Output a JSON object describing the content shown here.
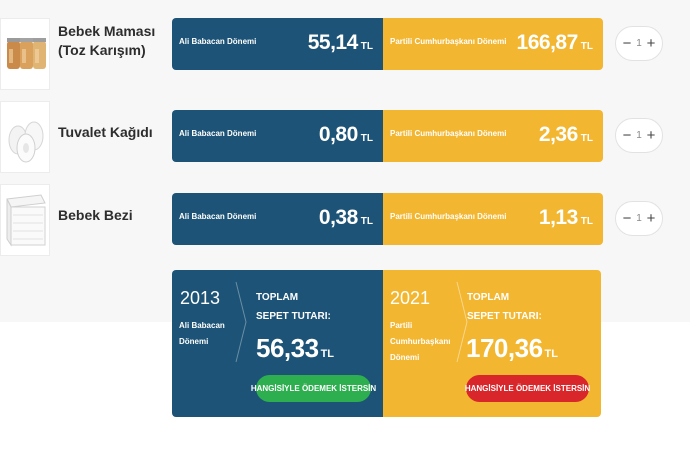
{
  "colors": {
    "blue": "#1c5376",
    "yellow": "#f2b630",
    "green": "#2dae4f",
    "red": "#d8262b"
  },
  "products": [
    {
      "name_line1": "Bebek Maması",
      "name_line2": "(Toz Karışım)",
      "icon": "baby-food-jars-image",
      "left_label": "Ali Babacan Dönemi",
      "left_price": "55,14",
      "right_label": "Partili Cumhurbaşkanı Dönemi",
      "right_price": "166,87",
      "currency": "TL",
      "minus": "−",
      "qty": "1",
      "plus": "+"
    },
    {
      "name_line1": "Tuvalet Kağıdı",
      "name_line2": "",
      "icon": "toilet-paper-image",
      "left_label": "Ali Babacan Dönemi",
      "left_price": "0,80",
      "right_label": "Partili Cumhurbaşkanı Dönemi",
      "right_price": "2,36",
      "currency": "TL",
      "minus": "−",
      "qty": "1",
      "plus": "+"
    },
    {
      "name_line1": "Bebek Bezi",
      "name_line2": "",
      "icon": "diaper-image",
      "left_label": "Ali Babacan Dönemi",
      "left_price": "0,38",
      "right_label": "Partili Cumhurbaşkanı Dönemi",
      "right_price": "1,13",
      "currency": "TL",
      "minus": "−",
      "qty": "1",
      "plus": "+"
    }
  ],
  "summary": {
    "left": {
      "year": "2013",
      "period_line1": "Ali Babacan",
      "period_line2": "Dönemi",
      "period_line3": "",
      "total_line1": "TOPLAM",
      "total_line2": "SEPET TUTARI:",
      "amount": "56,33",
      "currency": "TL",
      "button": "HANGİSİYLE ÖDEMEK İSTERSİN"
    },
    "right": {
      "year": "2021",
      "period_line1": "Partili",
      "period_line2": "Cumhurbaşkanı",
      "period_line3": "Dönemi",
      "total_line1": "TOPLAM",
      "total_line2": "SEPET TUTARI:",
      "amount": "170,36",
      "currency": "TL",
      "button": "HANGİSİYLE ÖDEMEK İSTERSİN"
    }
  }
}
